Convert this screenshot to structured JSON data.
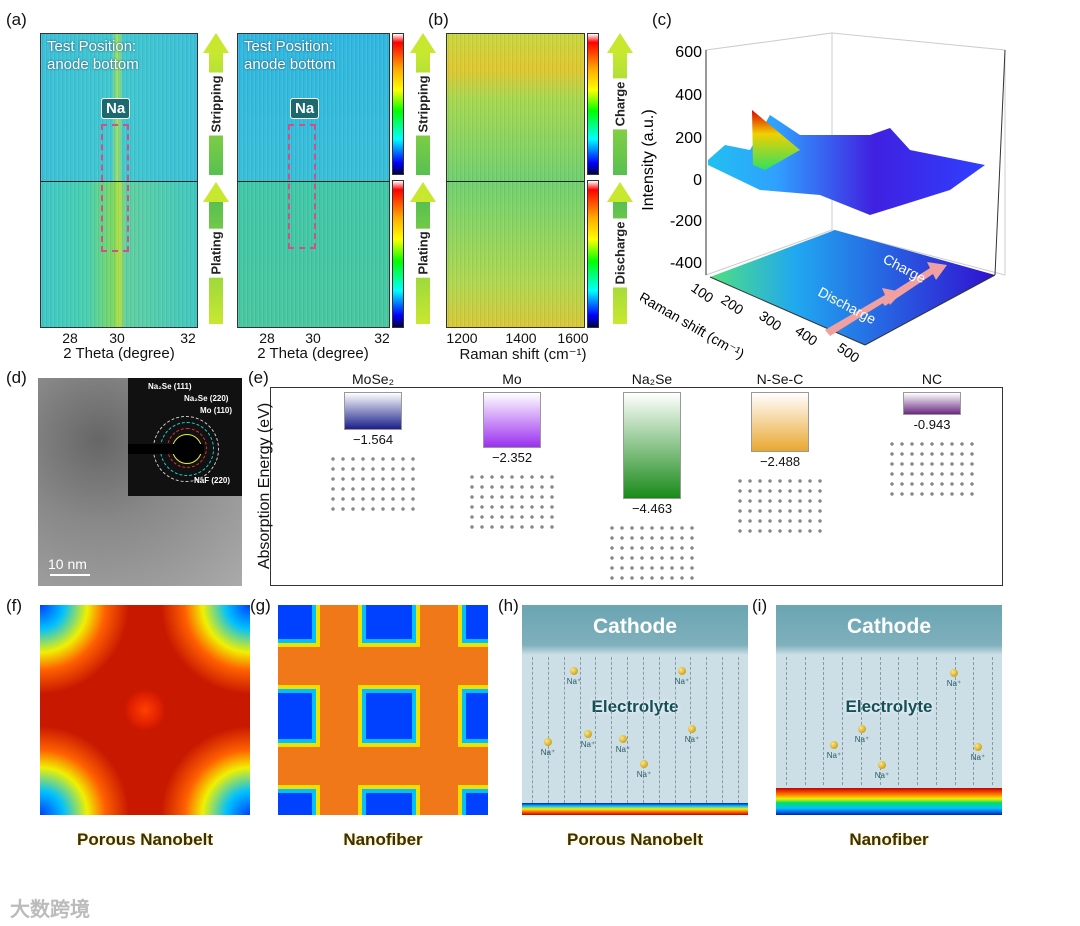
{
  "panels": {
    "a": "(a)",
    "b": "(b)",
    "c": "(c)",
    "d": "(d)",
    "e": "(e)",
    "f": "(f)",
    "g": "(g)",
    "h": "(h)",
    "i": "(i)"
  },
  "panel_a": {
    "test_position_line1": "Test Position:",
    "test_position_line2": "anode bottom",
    "na_label": "Na",
    "x_ticks": [
      "28",
      "30",
      "32"
    ],
    "xlabel": "2 Theta (degree)",
    "arrow_top": "Stripping",
    "arrow_bottom": "Plating"
  },
  "panel_b": {
    "x_ticks": [
      "1200",
      "1400",
      "1600"
    ],
    "xlabel": "Raman shift (cm⁻¹)",
    "arrow_top": "Charge",
    "arrow_bottom": "Discharge"
  },
  "panel_c": {
    "z_ticks": [
      "600",
      "400",
      "200",
      "0",
      "-200",
      "-400"
    ],
    "zlabel": "Intensity (a.u.)",
    "x_ticks": [
      "100",
      "200",
      "300",
      "400",
      "500"
    ],
    "xlabel": "Raman shift (cm⁻¹)",
    "arrow1": "Discharge",
    "arrow2": "Charge"
  },
  "panel_d": {
    "ring_labels": [
      "Na₂Se (111)",
      "Na₂Se (220)",
      "Mo (110)",
      "NaF (220)"
    ],
    "scale_bar": "10 nm"
  },
  "panel_e": {
    "ylabel": "Absorption Energy (eV)",
    "materials": [
      {
        "name": "MoSe₂",
        "value": "−1.564",
        "color": "#1a1f8a"
      },
      {
        "name": "Mo",
        "value": "−2.352",
        "color": "#9b30f0"
      },
      {
        "name": "Na₂Se",
        "value": "−4.463",
        "color": "#1a8a1a"
      },
      {
        "name": "N-Se-C",
        "value": "−2.488",
        "color": "#e8a830"
      },
      {
        "name": "NC",
        "value": "-0.943",
        "color": "#6a2a80"
      }
    ]
  },
  "captions": {
    "f": "Porous Nanobelt",
    "g": "Nanofiber",
    "h": "Porous Nanobelt",
    "i": "Nanofiber"
  },
  "cells": {
    "cathode": "Cathode",
    "electrolyte": "Electrolyte",
    "ion": "Na⁺"
  },
  "watermark": "大数跨境"
}
